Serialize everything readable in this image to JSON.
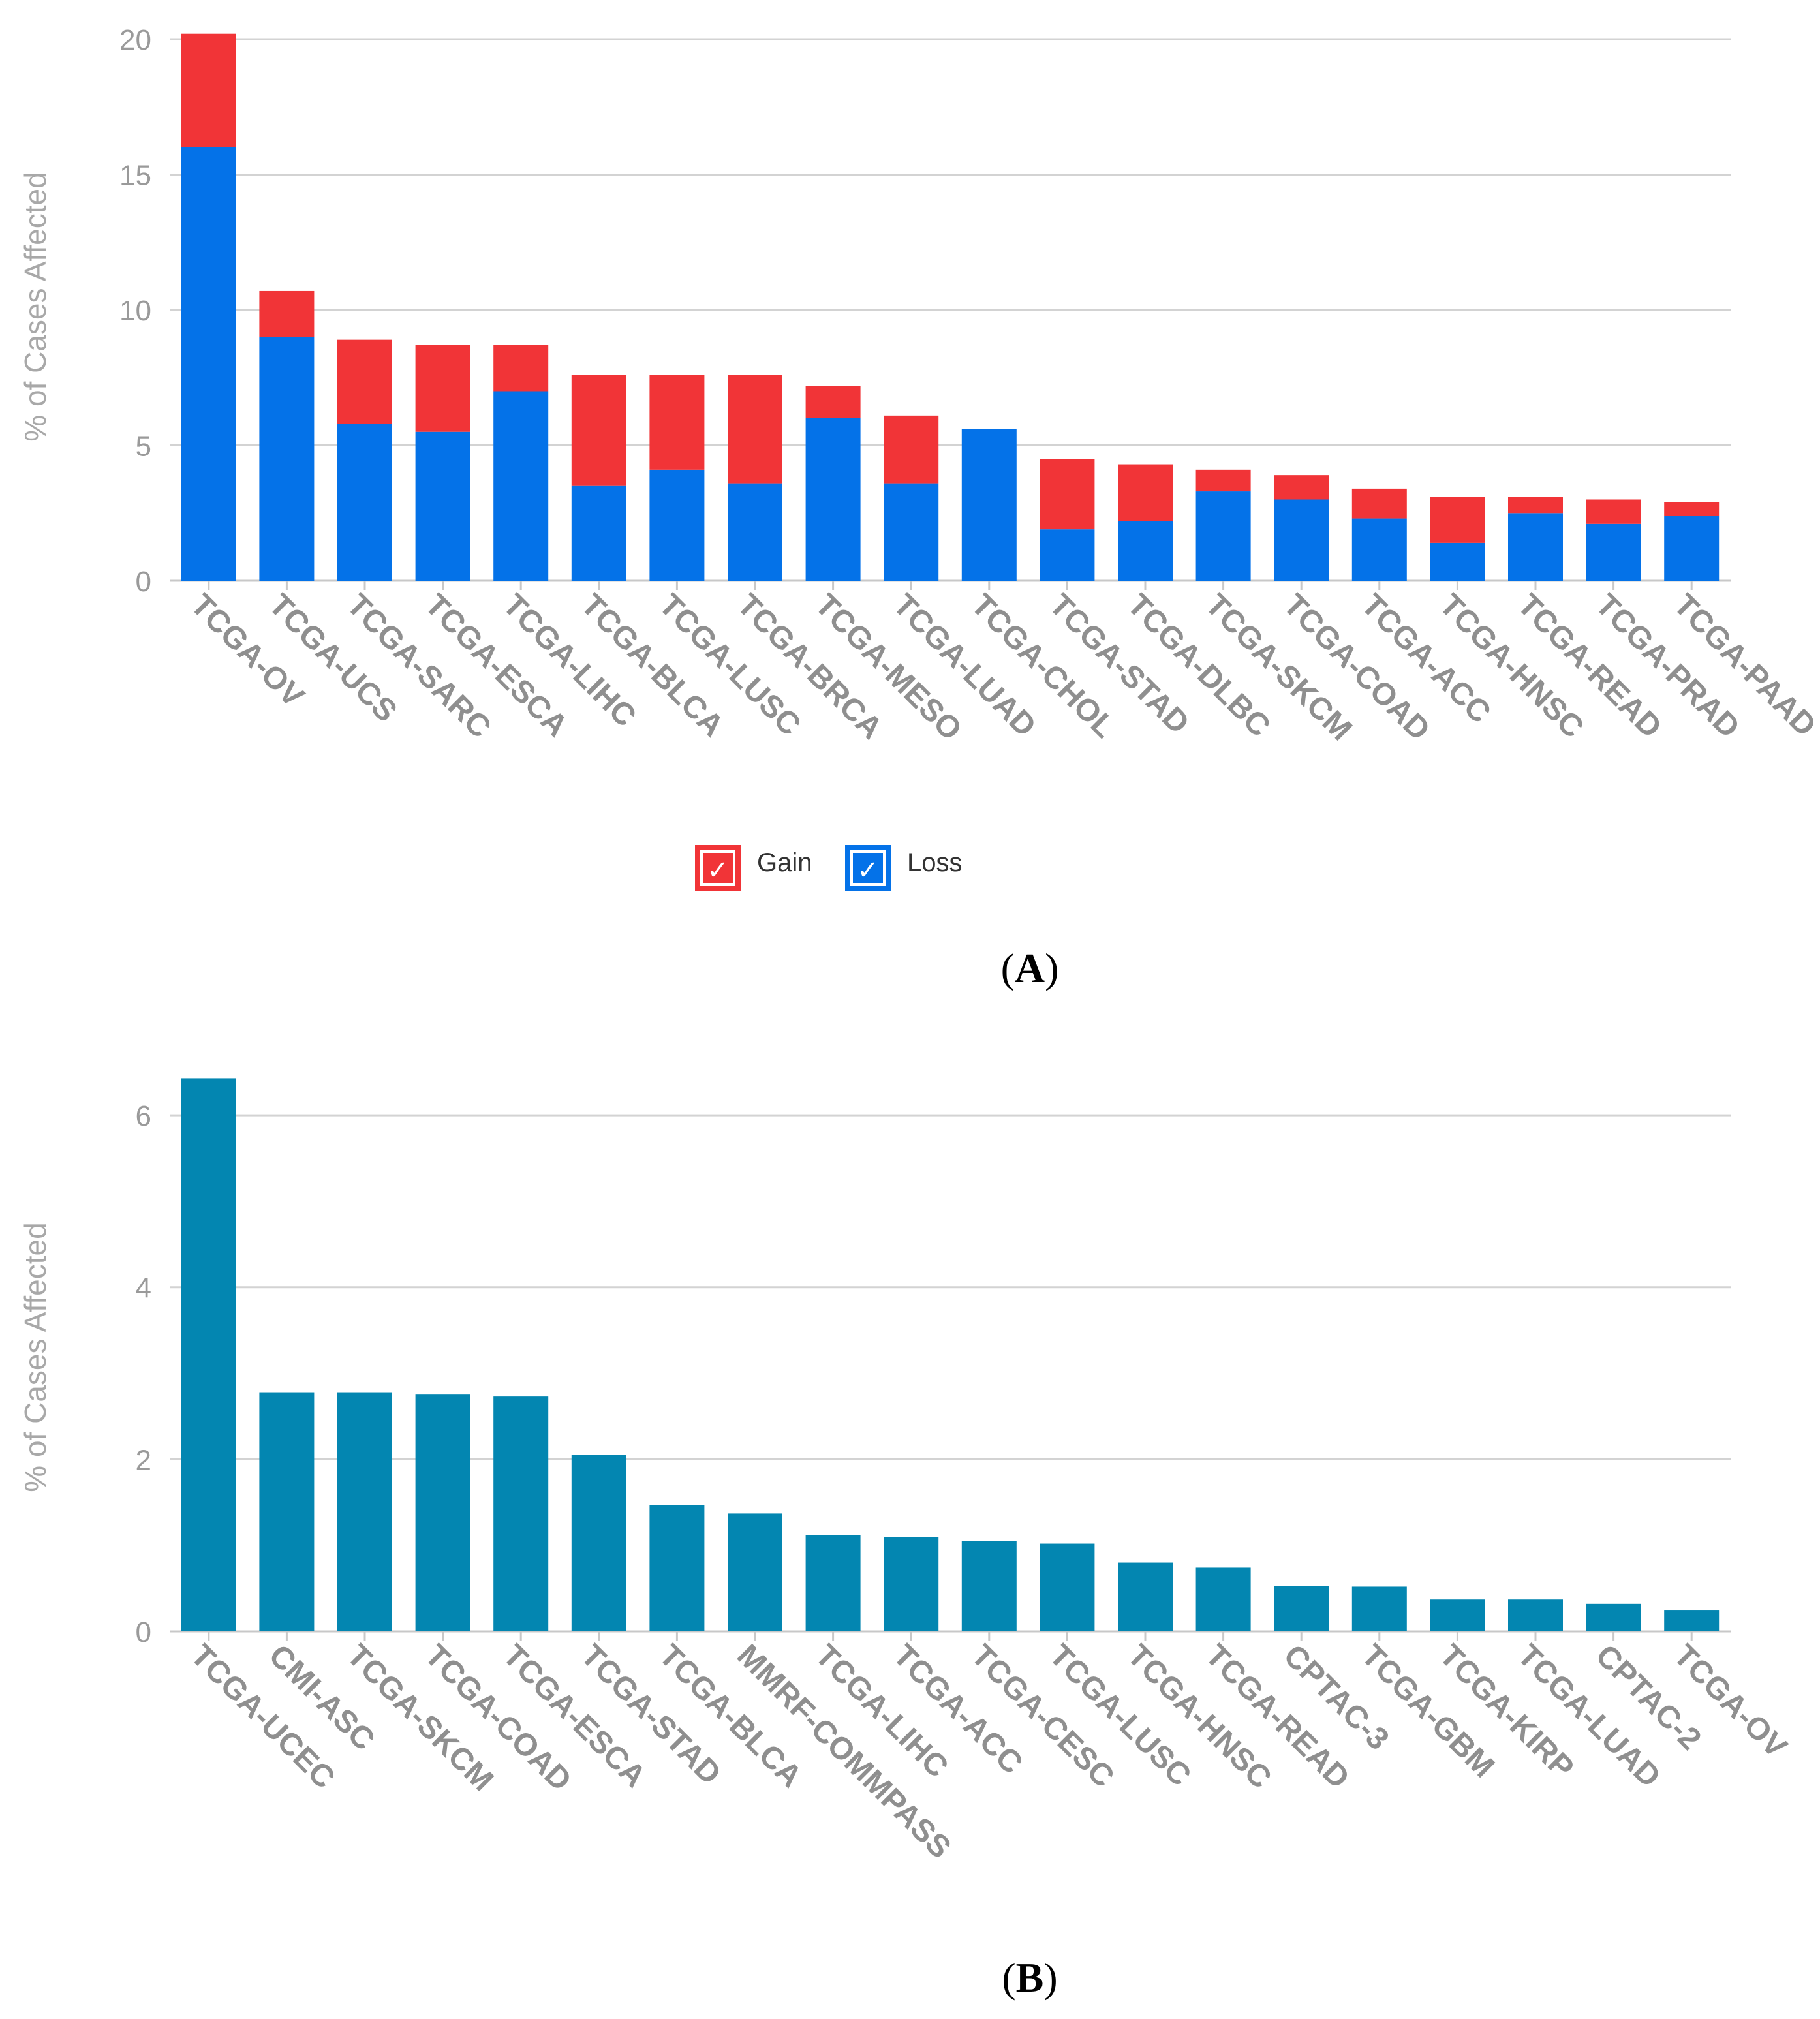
{
  "colors": {
    "gain": "#F13437",
    "loss": "#0472E8",
    "single": "#0386B1"
  },
  "chart_data": [
    {
      "type": "bar",
      "stacked": true,
      "panel_label": "A",
      "ylabel": "% of Cases Affected",
      "ylim": [
        0,
        20
      ],
      "yticks": [
        0,
        5,
        10,
        15,
        20
      ],
      "grid": true,
      "legend_position": "bottom-center",
      "categories": [
        "TCGA-OV",
        "TCGA-UCS",
        "TCGA-SARC",
        "TCGA-ESCA",
        "TCGA-LIHC",
        "TCGA-BLCA",
        "TCGA-LUSC",
        "TCGA-BRCA",
        "TCGA-MESO",
        "TCGA-LUAD",
        "TCGA-CHOL",
        "TCGA-STAD",
        "TCGA-DLBC",
        "TCGA-SKCM",
        "TCGA-COAD",
        "TCGA-ACC",
        "TCGA-HNSC",
        "TCGA-READ",
        "TCGA-PRAD",
        "TCGA-PAAD"
      ],
      "series": [
        {
          "name": "Loss",
          "color": "#0472E8",
          "values": [
            16.0,
            9.0,
            5.8,
            5.5,
            7.0,
            3.5,
            4.1,
            3.6,
            6.0,
            3.6,
            5.6,
            1.9,
            2.2,
            3.3,
            3.0,
            2.3,
            1.4,
            2.5,
            2.1,
            2.4
          ]
        },
        {
          "name": "Gain",
          "color": "#F13437",
          "values": [
            4.2,
            1.7,
            3.1,
            3.2,
            1.7,
            4.1,
            3.5,
            4.0,
            1.2,
            2.5,
            0.0,
            2.6,
            2.1,
            0.8,
            0.9,
            1.1,
            1.7,
            0.6,
            0.9,
            0.5
          ]
        }
      ],
      "legend": [
        {
          "label": "Gain",
          "check": "✓"
        },
        {
          "label": "Loss",
          "check": "✓"
        }
      ]
    },
    {
      "type": "bar",
      "panel_label": "B",
      "ylabel": "% of Cases Affected",
      "ylim": [
        0,
        6.6
      ],
      "yticks": [
        0,
        2,
        4,
        6
      ],
      "grid": true,
      "categories": [
        "TCGA-UCEC",
        "CMI-ASC",
        "TCGA-SKCM",
        "TCGA-COAD",
        "TCGA-ESCA",
        "TCGA-STAD",
        "TCGA-BLCA",
        "MMRF-COMMPASS",
        "TCGA-LIHC",
        "TCGA-ACC",
        "TCGA-CESC",
        "TCGA-LUSC",
        "TCGA-HNSC",
        "TCGA-READ",
        "CPTAC-3",
        "TCGA-GBM",
        "TCGA-KIRP",
        "TCGA-LUAD",
        "CPTAC-2",
        "TCGA-OV"
      ],
      "values": [
        6.43,
        2.78,
        2.78,
        2.76,
        2.73,
        2.05,
        1.47,
        1.37,
        1.12,
        1.1,
        1.05,
        1.02,
        0.8,
        0.74,
        0.53,
        0.52,
        0.37,
        0.37,
        0.32,
        0.25
      ]
    }
  ]
}
